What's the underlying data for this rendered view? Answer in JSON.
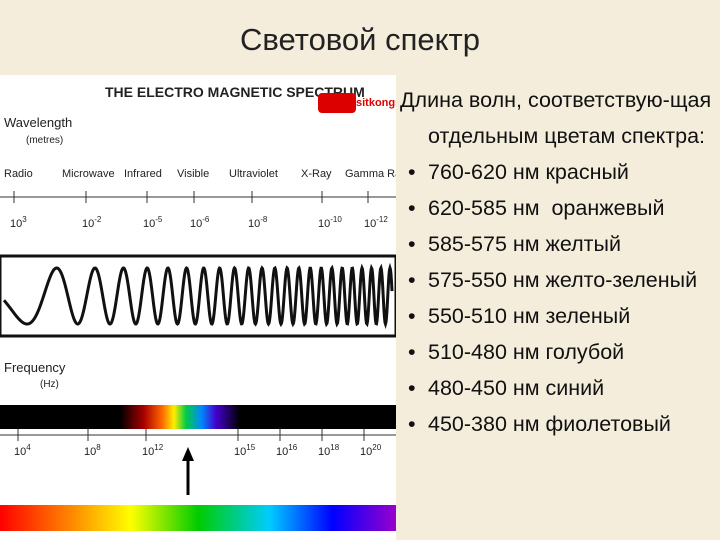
{
  "title": "Световой спектр",
  "figure": {
    "heading": "THE ELECTRO MAGNETIC SPECTRUM",
    "watermark": "sitkongs",
    "wavelength_label": "Wavelength",
    "wavelength_unit": "(metres)",
    "bands": [
      "Radio",
      "Microwave",
      "Infrared",
      "Visible",
      "Ultraviolet",
      "X-Ray",
      "Gamma Ray"
    ],
    "wavelength_ticks": [
      {
        "base": "10",
        "exp": "3"
      },
      {
        "base": "10",
        "exp": "-2"
      },
      {
        "base": "10",
        "exp": "-5"
      },
      {
        "base": "10",
        "exp": "-6"
      },
      {
        "base": "10",
        "exp": "-8"
      },
      {
        "base": "10",
        "exp": "-10"
      },
      {
        "base": "10",
        "exp": "-12"
      }
    ],
    "frequency_label": "Frequency",
    "frequency_unit": "(Hz)",
    "frequency_ticks": [
      {
        "base": "10",
        "exp": "4"
      },
      {
        "base": "10",
        "exp": "8"
      },
      {
        "base": "10",
        "exp": "12"
      },
      {
        "base": "10",
        "exp": "15"
      },
      {
        "base": "10",
        "exp": "16"
      },
      {
        "base": "10",
        "exp": "18"
      },
      {
        "base": "10",
        "exp": "20"
      }
    ]
  },
  "list": {
    "intro": "Длина волн, соответствую-щая отдельным цветам спектра:",
    "items": [
      "760-620 нм красный",
      "620-585 нм  оранжевый",
      "585-575 нм желтый",
      "575-550 нм желто-зеленый",
      "550-510 нм зеленый",
      "510-480 нм голубой",
      "480-450 нм синий",
      "450-380 нм фиолетовый"
    ]
  }
}
